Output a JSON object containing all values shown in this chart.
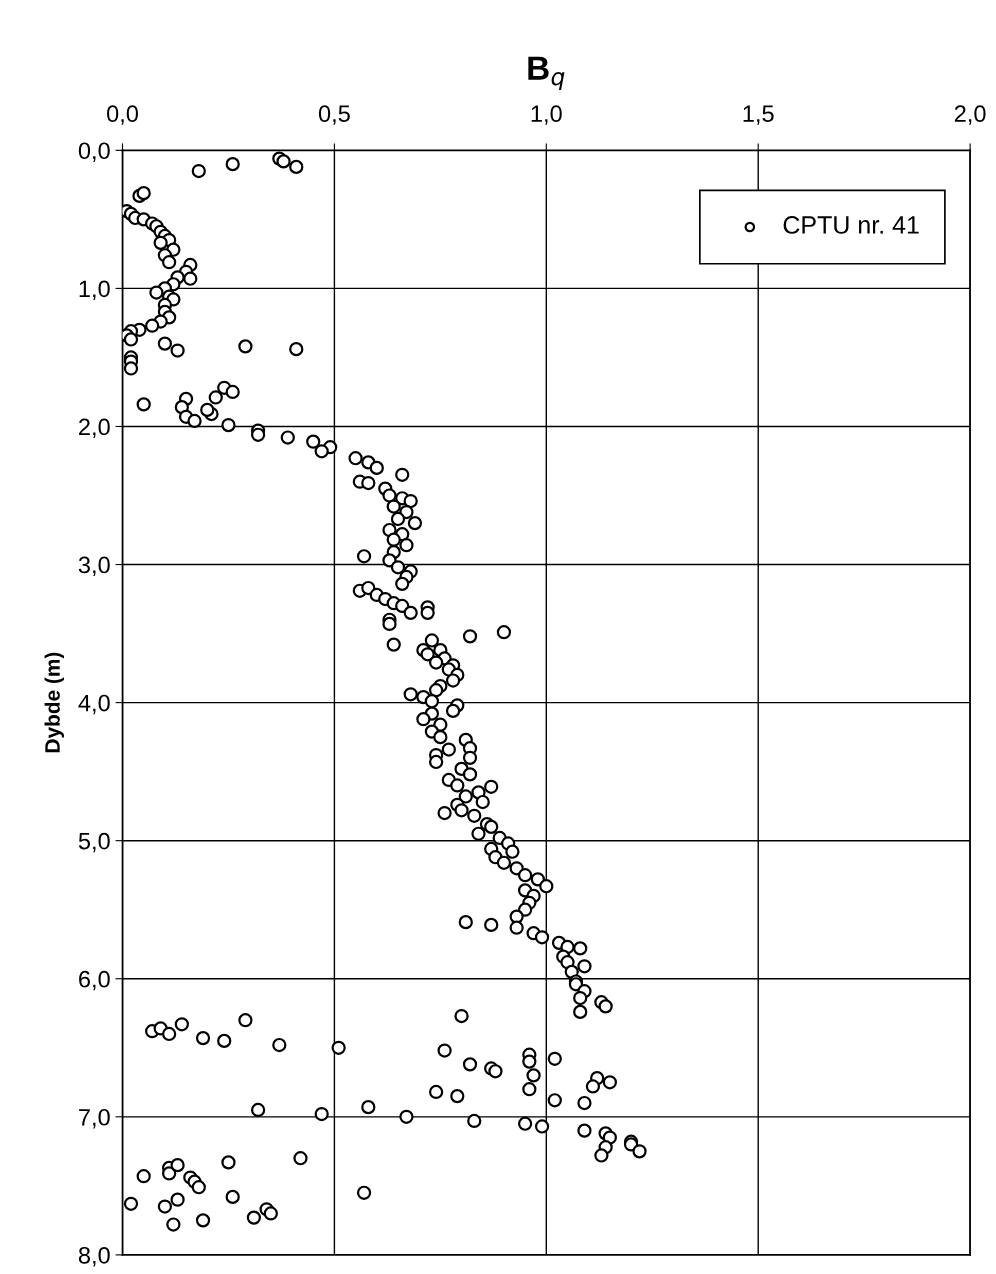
{
  "chart_data": {
    "type": "scatter",
    "xlabel": "B$_{q}$",
    "ylabel": "Dybde (m)",
    "xlim": [
      0,
      2.0
    ],
    "ylim": [
      8.0,
      0
    ],
    "xticks": [
      {
        "value": 0,
        "label": "0,0"
      },
      {
        "value": 0.5,
        "label": "0,5"
      },
      {
        "value": 1.0,
        "label": "1,0"
      },
      {
        "value": 1.5,
        "label": "1,5"
      },
      {
        "value": 2.0,
        "label": "2,0"
      }
    ],
    "yticks": [
      {
        "value": 0,
        "label": "0,0"
      },
      {
        "value": 1,
        "label": "1,0"
      },
      {
        "value": 2,
        "label": "2,0"
      },
      {
        "value": 3,
        "label": "3,0"
      },
      {
        "value": 4,
        "label": "4,0"
      },
      {
        "value": 5,
        "label": "5,0"
      },
      {
        "value": 6,
        "label": "6,0"
      },
      {
        "value": 7,
        "label": "7,0"
      },
      {
        "value": 8,
        "label": "8,0"
      }
    ],
    "grid": true,
    "legend": "top right",
    "marker": "circle",
    "series": [
      {
        "name": "CPTU nr. 41",
        "color": "#000000",
        "x": [
          0.37,
          0.38,
          0.41,
          0.26,
          0.18,
          0.04,
          0.05,
          0.01,
          0.02,
          0.03,
          0.05,
          0.07,
          0.08,
          0.09,
          0.1,
          0.11,
          0.09,
          0.12,
          0.1,
          0.11,
          0.16,
          0.15,
          0.13,
          0.16,
          0.12,
          0.1,
          0.08,
          0.11,
          0.12,
          0.1,
          0.1,
          0.11,
          0.09,
          0.07,
          0.04,
          0.02,
          0.01,
          0.02,
          0.1,
          0.13,
          0.29,
          0.41,
          0.02,
          0.02,
          0.02,
          0.05,
          0.15,
          0.14,
          0.15,
          0.17,
          0.21,
          0.2,
          0.22,
          0.24,
          0.26,
          0.25,
          0.32,
          0.32,
          0.39,
          0.45,
          0.49,
          0.47,
          0.55,
          0.58,
          0.6,
          0.66,
          0.56,
          0.58,
          0.62,
          0.63,
          0.66,
          0.68,
          0.64,
          0.67,
          0.65,
          0.69,
          0.63,
          0.66,
          0.64,
          0.67,
          0.64,
          0.57,
          0.63,
          0.65,
          0.68,
          0.67,
          0.66,
          0.56,
          0.58,
          0.6,
          0.62,
          0.64,
          0.66,
          0.72,
          0.72,
          0.68,
          0.63,
          0.63,
          0.64,
          0.82,
          0.9,
          0.73,
          0.75,
          0.71,
          0.72,
          0.76,
          0.74,
          0.78,
          0.77,
          0.79,
          0.78,
          0.75,
          0.74,
          0.68,
          0.71,
          0.73,
          0.79,
          0.78,
          0.73,
          0.71,
          0.75,
          0.73,
          0.75,
          0.81,
          0.82,
          0.77,
          0.74,
          0.74,
          0.82,
          0.8,
          0.82,
          0.77,
          0.79,
          0.87,
          0.84,
          0.81,
          0.85,
          0.79,
          0.8,
          0.76,
          0.83,
          0.86,
          0.87,
          0.84,
          0.89,
          0.91,
          0.87,
          0.92,
          0.88,
          0.9,
          0.93,
          0.95,
          0.98,
          1.0,
          0.95,
          0.97,
          0.96,
          0.95,
          0.93,
          0.81,
          0.87,
          0.93,
          0.97,
          0.99,
          1.03,
          1.05,
          1.08,
          1.04,
          1.05,
          1.09,
          1.06,
          1.07,
          1.07,
          1.09,
          1.08,
          1.13,
          1.14,
          1.08,
          0.07,
          0.09,
          0.11,
          0.14,
          0.19,
          0.24,
          0.29,
          0.37,
          0.51,
          0.8,
          0.76,
          0.82,
          0.87,
          0.88,
          0.96,
          0.96,
          0.97,
          0.96,
          1.02,
          1.12,
          1.11,
          1.15,
          0.74,
          0.79,
          1.02,
          1.09,
          0.32,
          0.47,
          0.58,
          0.67,
          0.83,
          0.95,
          0.99,
          1.09,
          1.14,
          1.15,
          1.2,
          1.2,
          1.22,
          1.14,
          1.13,
          0.25,
          0.42,
          0.05,
          0.11,
          0.11,
          0.13,
          0.16,
          0.17,
          0.18,
          0.26,
          0.13,
          0.1,
          0.02,
          0.57,
          0.34,
          0.35,
          0.31,
          0.19,
          0.12
        ],
        "values": [
          0.06,
          0.08,
          0.12,
          0.1,
          0.15,
          0.33,
          0.31,
          0.44,
          0.46,
          0.49,
          0.5,
          0.53,
          0.55,
          0.59,
          0.62,
          0.65,
          0.67,
          0.72,
          0.76,
          0.81,
          0.83,
          0.88,
          0.92,
          0.93,
          0.97,
          1.0,
          1.03,
          1.06,
          1.08,
          1.12,
          1.17,
          1.21,
          1.24,
          1.27,
          1.3,
          1.31,
          1.34,
          1.37,
          1.4,
          1.45,
          1.42,
          1.44,
          1.5,
          1.53,
          1.58,
          1.84,
          1.8,
          1.86,
          1.93,
          1.96,
          1.91,
          1.88,
          1.79,
          1.72,
          1.75,
          1.99,
          2.03,
          2.06,
          2.08,
          2.11,
          2.15,
          2.18,
          2.23,
          2.26,
          2.3,
          2.35,
          2.4,
          2.41,
          2.45,
          2.5,
          2.52,
          2.54,
          2.58,
          2.62,
          2.67,
          2.7,
          2.75,
          2.78,
          2.82,
          2.86,
          2.91,
          2.94,
          2.97,
          3.02,
          3.05,
          3.09,
          3.14,
          3.19,
          3.17,
          3.22,
          3.25,
          3.28,
          3.3,
          3.31,
          3.35,
          3.35,
          3.4,
          3.43,
          3.58,
          3.52,
          3.49,
          3.55,
          3.62,
          3.62,
          3.65,
          3.68,
          3.71,
          3.73,
          3.76,
          3.8,
          3.84,
          3.88,
          3.91,
          3.94,
          3.96,
          3.99,
          4.02,
          4.06,
          4.08,
          4.12,
          4.16,
          4.21,
          4.25,
          4.27,
          4.33,
          4.34,
          4.38,
          4.43,
          4.4,
          4.48,
          4.52,
          4.56,
          4.6,
          4.61,
          4.65,
          4.68,
          4.72,
          4.74,
          4.78,
          4.8,
          4.82,
          4.88,
          4.9,
          4.95,
          4.98,
          5.02,
          5.06,
          5.08,
          5.12,
          5.16,
          5.2,
          5.25,
          5.28,
          5.33,
          5.36,
          5.4,
          5.45,
          5.5,
          5.55,
          5.59,
          5.61,
          5.63,
          5.67,
          5.7,
          5.74,
          5.77,
          5.78,
          5.84,
          5.88,
          5.91,
          5.95,
          6.02,
          6.04,
          6.09,
          6.14,
          6.17,
          6.2,
          6.24,
          6.38,
          6.36,
          6.4,
          6.33,
          6.43,
          6.45,
          6.3,
          6.48,
          6.5,
          6.27,
          6.52,
          6.62,
          6.65,
          6.67,
          6.55,
          6.6,
          6.7,
          6.8,
          6.58,
          6.72,
          6.78,
          6.75,
          6.82,
          6.85,
          6.88,
          6.9,
          6.95,
          6.98,
          6.93,
          7.0,
          7.03,
          7.05,
          7.07,
          7.1,
          7.12,
          7.15,
          7.18,
          7.2,
          7.25,
          7.22,
          7.28,
          7.33,
          7.3,
          7.43,
          7.37,
          7.41,
          7.35,
          7.44,
          7.47,
          7.51,
          7.58,
          7.6,
          7.65,
          7.63,
          7.55,
          7.67,
          7.7,
          7.73,
          7.75,
          7.78
        ]
      }
    ]
  }
}
